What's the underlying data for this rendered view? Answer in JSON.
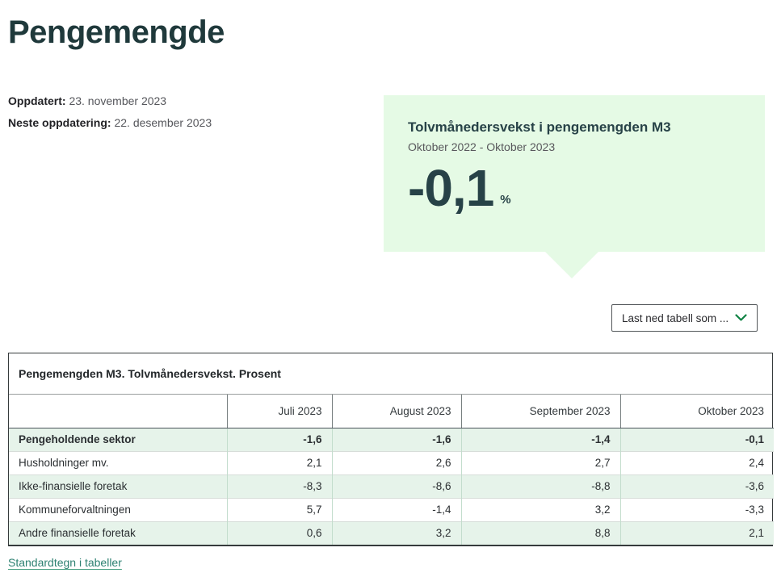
{
  "page": {
    "title": "Pengemengde"
  },
  "meta": {
    "updated_label": "Oppdatert:",
    "updated_value": "23. november 2023",
    "next_update_label": "Neste oppdatering:",
    "next_update_value": "22. desember 2023"
  },
  "highlight": {
    "title": "Tolvmånedersvekst i pengemengden M3",
    "period": "Oktober 2022 - Oktober 2023",
    "value": "-0,1",
    "unit": "%"
  },
  "download": {
    "label": "Last ned tabell som ...",
    "chevron_icon": "chevron-down-icon"
  },
  "table": {
    "caption": "Pengemengden M3. Tolvmånedersvekst. Prosent",
    "columns": [
      "Juli 2023",
      "August 2023",
      "September 2023",
      "Oktober 2023"
    ],
    "rows": [
      {
        "label": "Pengeholdende sektor",
        "values": [
          "-1,6",
          "-1,6",
          "-1,4",
          "-0,1"
        ],
        "bold": true
      },
      {
        "label": "Husholdninger mv.",
        "values": [
          "2,1",
          "2,6",
          "2,7",
          "2,4"
        ],
        "bold": false
      },
      {
        "label": "Ikke-finansielle foretak",
        "values": [
          "-8,3",
          "-8,6",
          "-8,8",
          "-3,6"
        ],
        "bold": false
      },
      {
        "label": "Kommuneforvaltningen",
        "values": [
          "5,7",
          "-1,4",
          "3,2",
          "-3,3"
        ],
        "bold": false
      },
      {
        "label": "Andre finansielle foretak",
        "values": [
          "0,6",
          "3,2",
          "8,8",
          "2,1"
        ],
        "bold": false
      }
    ]
  },
  "footer": {
    "link_label": "Standardtegn i tabeller"
  },
  "colors": {
    "dark_teal": "#274247",
    "highlight_bg": "#e5fae5",
    "table_row_green": "#e6f3ea",
    "link_green": "#2e8172",
    "chevron_green": "#0e8243"
  }
}
